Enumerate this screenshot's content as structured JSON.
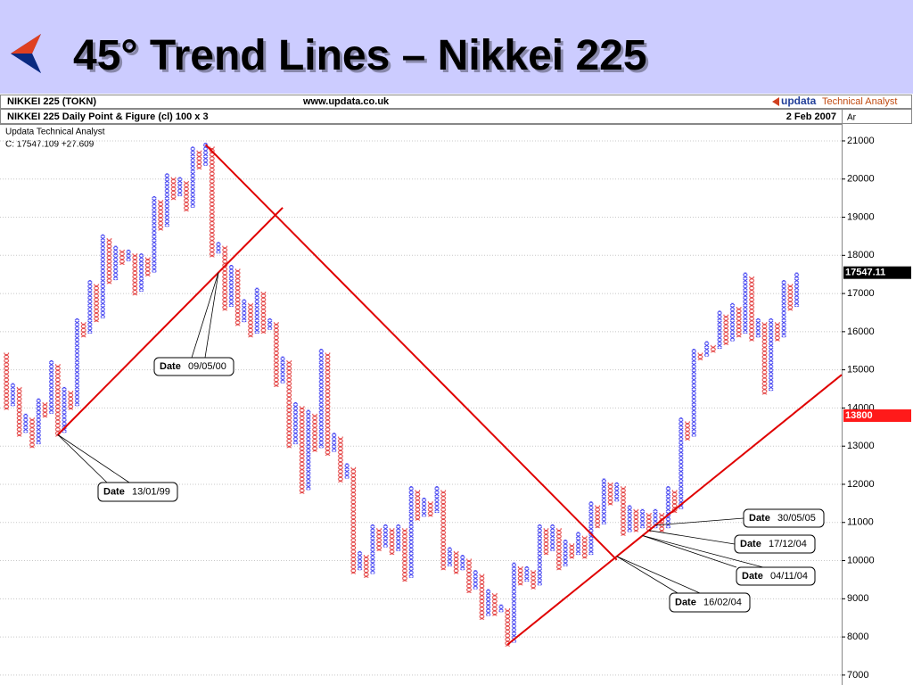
{
  "title": "45° Trend Lines – Nikkei 225",
  "header": {
    "symbol": "NIKKEI 225 (TOKN)",
    "website": "www.updata.co.uk",
    "logo_brand": "updata",
    "logo_product": "Technical Analyst",
    "chart_name": "NIKKEI 225 Daily Point & Figure (cl) 100 x 3",
    "date": "2 Feb 2007",
    "axis_header": "Ar"
  },
  "chart_data": {
    "type": "pointfigure",
    "info": [
      "Updata Technical Analyst",
      "C: 17547.109  +27.609"
    ],
    "x_color": "#3a3af0",
    "o_color": "#e23a3a",
    "xlim": [
      -1,
      130
    ],
    "ylim": [
      6740,
      21420
    ],
    "yticks": [
      7000,
      8000,
      9000,
      10000,
      11000,
      12000,
      13000,
      14000,
      15000,
      16000,
      17000,
      18000,
      19000,
      20000,
      21000
    ],
    "grid": true,
    "columns": [
      {
        "kind": "o",
        "low": 14000,
        "high": 15400
      },
      {
        "kind": "x",
        "low": 14100,
        "high": 14600
      },
      {
        "kind": "o",
        "low": 13300,
        "high": 14500
      },
      {
        "kind": "x",
        "low": 13400,
        "high": 13800
      },
      {
        "kind": "o",
        "low": 13000,
        "high": 13700
      },
      {
        "kind": "x",
        "low": 13100,
        "high": 14200
      },
      {
        "kind": "o",
        "low": 13800,
        "high": 14100
      },
      {
        "kind": "x",
        "low": 13900,
        "high": 15200
      },
      {
        "kind": "o",
        "low": 13300,
        "high": 15100
      },
      {
        "kind": "x",
        "low": 13400,
        "high": 14500
      },
      {
        "kind": "o",
        "low": 14000,
        "high": 14400
      },
      {
        "kind": "x",
        "low": 14100,
        "high": 16300
      },
      {
        "kind": "o",
        "low": 15900,
        "high": 16200
      },
      {
        "kind": "x",
        "low": 16000,
        "high": 17300
      },
      {
        "kind": "o",
        "low": 16300,
        "high": 17200
      },
      {
        "kind": "x",
        "low": 16400,
        "high": 18500
      },
      {
        "kind": "o",
        "low": 17300,
        "high": 18400
      },
      {
        "kind": "x",
        "low": 17400,
        "high": 18200
      },
      {
        "kind": "o",
        "low": 17800,
        "high": 18100
      },
      {
        "kind": "x",
        "low": 17900,
        "high": 18100
      },
      {
        "kind": "o",
        "low": 17000,
        "high": 18000
      },
      {
        "kind": "x",
        "low": 17100,
        "high": 18000
      },
      {
        "kind": "o",
        "low": 17500,
        "high": 17900
      },
      {
        "kind": "x",
        "low": 17600,
        "high": 19500
      },
      {
        "kind": "o",
        "low": 18700,
        "high": 19400
      },
      {
        "kind": "x",
        "low": 18800,
        "high": 20100
      },
      {
        "kind": "o",
        "low": 19500,
        "high": 20000
      },
      {
        "kind": "x",
        "low": 19600,
        "high": 20000
      },
      {
        "kind": "o",
        "low": 19200,
        "high": 19900
      },
      {
        "kind": "x",
        "low": 19300,
        "high": 20800
      },
      {
        "kind": "o",
        "low": 20300,
        "high": 20700
      },
      {
        "kind": "x",
        "low": 20400,
        "high": 20900
      },
      {
        "kind": "o",
        "low": 18000,
        "high": 20800
      },
      {
        "kind": "x",
        "low": 18100,
        "high": 18300
      },
      {
        "kind": "o",
        "low": 16600,
        "high": 18200
      },
      {
        "kind": "x",
        "low": 16700,
        "high": 17700
      },
      {
        "kind": "o",
        "low": 16200,
        "high": 17600
      },
      {
        "kind": "x",
        "low": 16300,
        "high": 16800
      },
      {
        "kind": "o",
        "low": 15900,
        "high": 16700
      },
      {
        "kind": "x",
        "low": 16000,
        "high": 17100
      },
      {
        "kind": "o",
        "low": 16000,
        "high": 17000
      },
      {
        "kind": "x",
        "low": 16100,
        "high": 16300
      },
      {
        "kind": "o",
        "low": 14600,
        "high": 16200
      },
      {
        "kind": "x",
        "low": 14700,
        "high": 15300
      },
      {
        "kind": "o",
        "low": 13000,
        "high": 15200
      },
      {
        "kind": "x",
        "low": 13100,
        "high": 14100
      },
      {
        "kind": "o",
        "low": 11800,
        "high": 14000
      },
      {
        "kind": "x",
        "low": 11900,
        "high": 13900
      },
      {
        "kind": "o",
        "low": 12900,
        "high": 13800
      },
      {
        "kind": "x",
        "low": 13000,
        "high": 15500
      },
      {
        "kind": "o",
        "low": 12800,
        "high": 15400
      },
      {
        "kind": "x",
        "low": 12900,
        "high": 13300
      },
      {
        "kind": "o",
        "low": 12100,
        "high": 13200
      },
      {
        "kind": "x",
        "low": 12200,
        "high": 12500
      },
      {
        "kind": "o",
        "low": 9700,
        "high": 12400
      },
      {
        "kind": "x",
        "low": 9800,
        "high": 10200
      },
      {
        "kind": "o",
        "low": 9600,
        "high": 10100
      },
      {
        "kind": "x",
        "low": 9700,
        "high": 10900
      },
      {
        "kind": "o",
        "low": 10300,
        "high": 10800
      },
      {
        "kind": "x",
        "low": 10400,
        "high": 10900
      },
      {
        "kind": "o",
        "low": 10200,
        "high": 10800
      },
      {
        "kind": "x",
        "low": 10300,
        "high": 10900
      },
      {
        "kind": "o",
        "low": 9500,
        "high": 10800
      },
      {
        "kind": "x",
        "low": 9600,
        "high": 11900
      },
      {
        "kind": "o",
        "low": 11100,
        "high": 11800
      },
      {
        "kind": "x",
        "low": 11200,
        "high": 11600
      },
      {
        "kind": "o",
        "low": 11200,
        "high": 11500
      },
      {
        "kind": "x",
        "low": 11300,
        "high": 11900
      },
      {
        "kind": "o",
        "low": 9800,
        "high": 11800
      },
      {
        "kind": "x",
        "low": 9900,
        "high": 10300
      },
      {
        "kind": "o",
        "low": 9700,
        "high": 10200
      },
      {
        "kind": "x",
        "low": 9800,
        "high": 10100
      },
      {
        "kind": "o",
        "low": 9200,
        "high": 10000
      },
      {
        "kind": "x",
        "low": 9300,
        "high": 9700
      },
      {
        "kind": "o",
        "low": 8500,
        "high": 9600
      },
      {
        "kind": "x",
        "low": 8600,
        "high": 9200
      },
      {
        "kind": "o",
        "low": 8600,
        "high": 9100
      },
      {
        "kind": "x",
        "low": 8700,
        "high": 8800
      },
      {
        "kind": "o",
        "low": 7800,
        "high": 8700
      },
      {
        "kind": "x",
        "low": 7900,
        "high": 9900
      },
      {
        "kind": "o",
        "low": 9400,
        "high": 9800
      },
      {
        "kind": "x",
        "low": 9500,
        "high": 9800
      },
      {
        "kind": "o",
        "low": 9300,
        "high": 9700
      },
      {
        "kind": "x",
        "low": 9400,
        "high": 10900
      },
      {
        "kind": "o",
        "low": 10200,
        "high": 10800
      },
      {
        "kind": "x",
        "low": 10300,
        "high": 10900
      },
      {
        "kind": "o",
        "low": 9800,
        "high": 10800
      },
      {
        "kind": "x",
        "low": 9900,
        "high": 10500
      },
      {
        "kind": "o",
        "low": 10100,
        "high": 10400
      },
      {
        "kind": "x",
        "low": 10200,
        "high": 10700
      },
      {
        "kind": "o",
        "low": 10100,
        "high": 10600
      },
      {
        "kind": "x",
        "low": 10200,
        "high": 11500
      },
      {
        "kind": "o",
        "low": 10900,
        "high": 11400
      },
      {
        "kind": "x",
        "low": 11000,
        "high": 12100
      },
      {
        "kind": "o",
        "low": 11500,
        "high": 12000
      },
      {
        "kind": "x",
        "low": 11600,
        "high": 12000
      },
      {
        "kind": "o",
        "low": 10700,
        "high": 11900
      },
      {
        "kind": "x",
        "low": 10800,
        "high": 11400
      },
      {
        "kind": "o",
        "low": 10800,
        "high": 11300
      },
      {
        "kind": "x",
        "low": 10900,
        "high": 11300
      },
      {
        "kind": "o",
        "low": 10800,
        "high": 11200
      },
      {
        "kind": "x",
        "low": 10900,
        "high": 11300
      },
      {
        "kind": "o",
        "low": 10800,
        "high": 11200
      },
      {
        "kind": "x",
        "low": 10900,
        "high": 11900
      },
      {
        "kind": "o",
        "low": 11300,
        "high": 11800
      },
      {
        "kind": "x",
        "low": 11400,
        "high": 13700
      },
      {
        "kind": "o",
        "low": 13200,
        "high": 13600
      },
      {
        "kind": "x",
        "low": 13300,
        "high": 15500
      },
      {
        "kind": "o",
        "low": 15300,
        "high": 15400
      },
      {
        "kind": "x",
        "low": 15400,
        "high": 15700
      },
      {
        "kind": "o",
        "low": 15500,
        "high": 15600
      },
      {
        "kind": "x",
        "low": 15600,
        "high": 16500
      },
      {
        "kind": "o",
        "low": 15700,
        "high": 16400
      },
      {
        "kind": "x",
        "low": 15800,
        "high": 16700
      },
      {
        "kind": "o",
        "low": 15900,
        "high": 16600
      },
      {
        "kind": "x",
        "low": 16000,
        "high": 17500
      },
      {
        "kind": "o",
        "low": 15800,
        "high": 17400
      },
      {
        "kind": "x",
        "low": 15900,
        "high": 16300
      },
      {
        "kind": "o",
        "low": 14400,
        "high": 16200
      },
      {
        "kind": "x",
        "low": 14500,
        "high": 16300
      },
      {
        "kind": "o",
        "low": 15800,
        "high": 16200
      },
      {
        "kind": "x",
        "low": 15900,
        "high": 17300
      },
      {
        "kind": "o",
        "low": 16600,
        "high": 17200
      },
      {
        "kind": "x",
        "low": 16700,
        "high": 17500
      }
    ],
    "trend_lines": {
      "color": "#e00000",
      "lines": [
        {
          "x": [
            8,
            43
          ],
          "values": [
            13300,
            19250
          ]
        },
        {
          "x": [
            31,
            95
          ],
          "values": [
            20900,
            10020
          ]
        },
        {
          "x": [
            78,
            130
          ],
          "values": [
            7800,
            14870
          ]
        }
      ]
    },
    "price_flags": [
      {
        "value": 17547.11,
        "color": "#000000"
      },
      {
        "value": 13800,
        "color": "#ff1a1a"
      }
    ],
    "annotations": [
      {
        "label": "Date",
        "date": "13/01/99"
      },
      {
        "label": "Date",
        "date": "09/05/00"
      },
      {
        "label": "Date",
        "date": "30/05/05"
      },
      {
        "label": "Date",
        "date": "17/12/04"
      },
      {
        "label": "Date",
        "date": "04/11/04"
      },
      {
        "label": "Date",
        "date": "16/02/04"
      }
    ]
  }
}
